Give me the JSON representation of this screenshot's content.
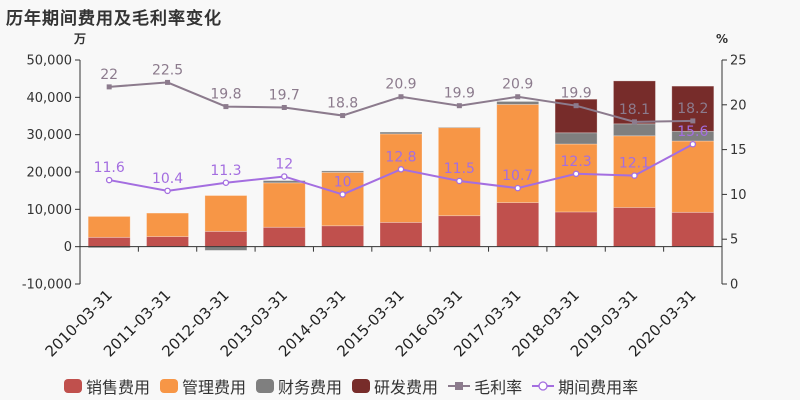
{
  "title": "历年期间费用及毛利率变化",
  "left_axis_unit": "万",
  "right_axis_unit": "%",
  "legend": [
    {
      "label": "销售费用",
      "color": "#c0504d",
      "kind": "bar"
    },
    {
      "label": "管理费用",
      "color": "#f79646",
      "kind": "bar"
    },
    {
      "label": "财务费用",
      "color": "#7f7f7f",
      "kind": "bar"
    },
    {
      "label": "研发费用",
      "color": "#772c2a",
      "kind": "bar"
    },
    {
      "label": "毛利率",
      "color": "#8c7b8d",
      "kind": "line-square"
    },
    {
      "label": "期间费用率",
      "color": "#a46ee0",
      "kind": "line-circle"
    }
  ],
  "chart_data": {
    "type": "bar",
    "title": "历年期间费用及毛利率变化",
    "xlabel": "",
    "ylabel": "万",
    "y2label": "%",
    "ylim": [
      -10000,
      50000
    ],
    "y2lim": [
      0,
      25
    ],
    "yticks": [
      "-10,000",
      "0",
      "10,000",
      "20,000",
      "30,000",
      "40,000",
      "50,000"
    ],
    "y2ticks": [
      "0",
      "5",
      "10",
      "15",
      "20",
      "25"
    ],
    "categories": [
      "2010-03-31",
      "2011-03-31",
      "2012-03-31",
      "2013-03-31",
      "2014-03-31",
      "2015-03-31",
      "2016-03-31",
      "2017-03-31",
      "2018-03-31",
      "2019-03-31",
      "2020-03-31"
    ],
    "stacked": true,
    "series": [
      {
        "name": "销售费用",
        "type": "bar",
        "axis": "left",
        "color": "#c0504d",
        "values": [
          2500,
          2700,
          4100,
          5200,
          5600,
          6500,
          8300,
          11800,
          9300,
          10500,
          9200
        ]
      },
      {
        "name": "管理费用",
        "type": "bar",
        "axis": "left",
        "color": "#f79646",
        "values": [
          5600,
          6300,
          9600,
          11900,
          14300,
          23700,
          23600,
          26300,
          18200,
          19200,
          19100
        ]
      },
      {
        "name": "财务费用",
        "type": "bar",
        "axis": "left",
        "color": "#7f7f7f",
        "values": [
          -300,
          0,
          -1000,
          600,
          400,
          500,
          100,
          800,
          3000,
          3200,
          2600
        ]
      },
      {
        "name": "研发费用",
        "type": "bar",
        "axis": "left",
        "color": "#772c2a",
        "values": [
          0,
          0,
          0,
          0,
          0,
          0,
          0,
          0,
          9000,
          11500,
          12100
        ]
      },
      {
        "name": "毛利率",
        "type": "line",
        "axis": "right",
        "color": "#8c7b8d",
        "values": [
          22,
          22.5,
          19.8,
          19.7,
          18.8,
          20.9,
          19.9,
          20.9,
          19.9,
          18.1,
          18.2
        ]
      },
      {
        "name": "期间费用率",
        "type": "line",
        "axis": "right",
        "color": "#a46ee0",
        "values": [
          11.6,
          10.4,
          11.3,
          12,
          10,
          12.8,
          11.5,
          10.7,
          12.3,
          12.1,
          15.6
        ]
      }
    ],
    "legend_position": "bottom",
    "grid": false
  }
}
